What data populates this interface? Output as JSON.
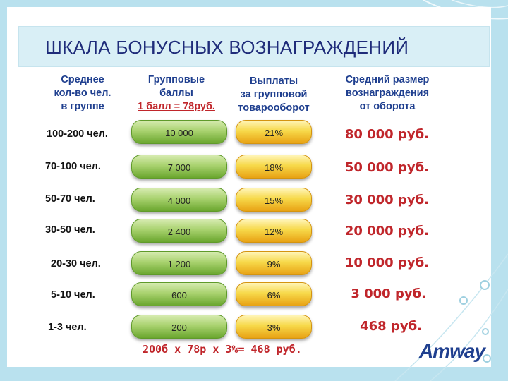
{
  "title": "ШКАЛА БОНУСНЫХ ВОЗНАГРАЖДЕНИЙ",
  "headers": {
    "group_size": [
      "Среднее",
      "кол-во чел.",
      "в группе"
    ],
    "group_points": [
      "Групповые",
      "баллы"
    ],
    "point_note": "1 балл = 78руб.",
    "payouts": [
      "Выплаты",
      "за групповой",
      "товарооборот"
    ],
    "avg_reward": [
      "Средний размер",
      "вознаграждения",
      "от оборота"
    ]
  },
  "rows": [
    {
      "group": "100-200 чел.",
      "points": "10 000",
      "percent": "21%",
      "reward": "80 000 руб."
    },
    {
      "group": "70-100 чел.",
      "points": "7 000",
      "percent": "18%",
      "reward": "50 000 руб."
    },
    {
      "group": "50-70 чел.",
      "points": "4 000",
      "percent": "15%",
      "reward": "30 000 руб."
    },
    {
      "group": "30-50 чел.",
      "points": "2 400",
      "percent": "12%",
      "reward": "20 000 руб."
    },
    {
      "group": "20-30 чел.",
      "points": "1 200",
      "percent": "9%",
      "reward": "10 000 руб."
    },
    {
      "group": "5-10 чел.",
      "points": "600",
      "percent": "6%",
      "reward": "3 000 руб."
    },
    {
      "group": "1-3 чел.",
      "points": "200",
      "percent": "3%",
      "reward": "468 руб."
    }
  ],
  "formula": "200б х 78р х 3%= 468 руб.",
  "logo": "Amway",
  "colors": {
    "title": "#1f2c7a",
    "header": "#1f3f8f",
    "accent_red": "#c0262b",
    "pill_green": "#a9d26f",
    "pill_yellow": "#f7d94a",
    "background": "#b9e1ee"
  }
}
